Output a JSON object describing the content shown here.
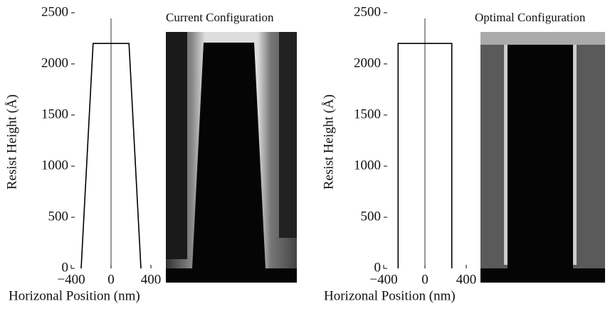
{
  "chart_data": [
    {
      "type": "line",
      "title": "Current Configuration",
      "x_label": "Horizonal Position (nm)",
      "y_label": "Resist Height (Å)",
      "x": [
        -300,
        -180,
        180,
        300
      ],
      "values": [
        0,
        2200,
        2200,
        0
      ],
      "color": "#000000",
      "xlim": [
        -400,
        400
      ],
      "ylim": [
        0,
        2500
      ],
      "xticks": [
        {
          "value": -400,
          "label": "−400"
        },
        0,
        400
      ],
      "yticks": [
        0,
        500,
        1000,
        1500,
        2000,
        2500
      ]
    },
    {
      "type": "line",
      "title": "Optimal Configuration",
      "x_label": "Horizonal Position (nm)",
      "y_label": "Resist Height (Å)",
      "x": [
        -260,
        -260,
        260,
        260
      ],
      "values": [
        0,
        2200,
        2200,
        0
      ],
      "color": "#000000",
      "xlim": [
        -400,
        400
      ],
      "ylim": [
        0,
        2500
      ],
      "xticks": [
        {
          "value": -400,
          "label": "−400"
        },
        0,
        400
      ],
      "yticks": [
        0,
        500,
        1000,
        1500,
        2000,
        2500
      ]
    }
  ]
}
